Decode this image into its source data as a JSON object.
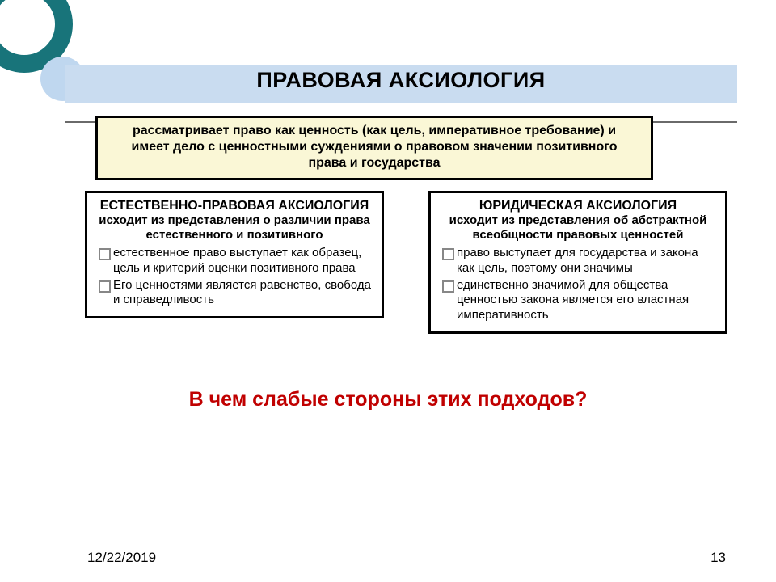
{
  "colors": {
    "teal": "#18747a",
    "lightblue": "#c9dcf0",
    "cream": "#faf7d6",
    "red": "#c00000",
    "bullet": "#878787"
  },
  "title": "ПРАВОВАЯ АКСИОЛОГИЯ",
  "intro": "рассматривает право как ценность (как цель, императивное требование) и имеет дело с ценностными суждениями о правовом значении позитивного права и государства",
  "left": {
    "head": "ЕСТЕСТВЕННО-ПРАВОВАЯ АКСИОЛОГИЯ",
    "sub": "исходит из представления о различии права естественного и позитивного",
    "bullets": [
      "естественное право выступает как образец, цель и критерий оценки позитивного права",
      "Его ценностями является равенство, свобода и справедливость"
    ]
  },
  "right": {
    "head": "ЮРИДИЧЕСКАЯ АКСИОЛОГИЯ",
    "sub": "исходит из представления об абстрактной всеобщности правовых ценностей",
    "bullets": [
      "право выступает для государства и закона как цель, поэтому они значимы",
      "единственно значимой для общества ценностью закона является его властная императивность"
    ]
  },
  "question": "В чем слабые стороны этих подходов?",
  "footer": {
    "date": "12/22/2019",
    "page": "13"
  }
}
